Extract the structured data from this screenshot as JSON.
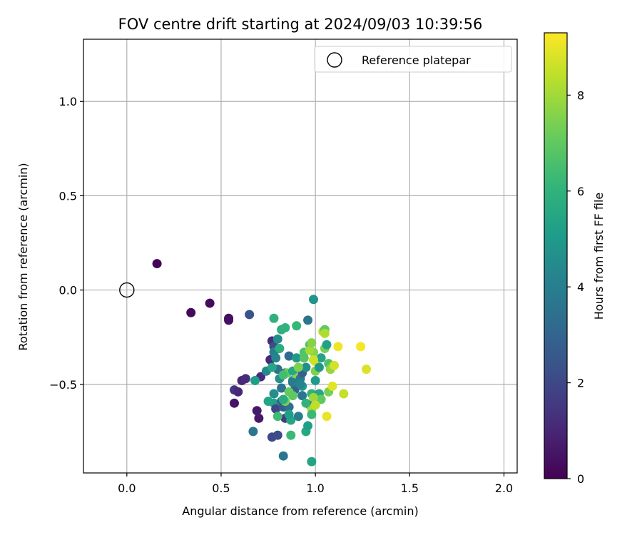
{
  "chart_data": {
    "type": "scatter",
    "title": "FOV centre drift starting at 2024/09/03 10:39:56",
    "xlabel": "Angular distance from reference (arcmin)",
    "ylabel": "Rotation from reference (arcmin)",
    "xlim": [
      -0.23,
      2.07
    ],
    "ylim": [
      -0.97,
      1.33
    ],
    "xticks": [
      0.0,
      0.5,
      1.0,
      1.5,
      2.0
    ],
    "xtick_labels": [
      "0.0",
      "0.5",
      "1.0",
      "1.5",
      "2.0"
    ],
    "yticks": [
      1.0,
      0.5,
      0.0,
      -0.5
    ],
    "ytick_labels": [
      "1.0",
      "0.5",
      "0.0",
      "−0.5"
    ],
    "grid": true,
    "legend": {
      "placement": "top-right",
      "entries": [
        "Reference platepar"
      ]
    },
    "reference_point": {
      "x": 0.0,
      "y": 0.0
    },
    "colorbar": {
      "label": "Hours from first FF file",
      "range": [
        0,
        9.3
      ],
      "ticks": [
        0,
        2,
        4,
        6,
        8
      ],
      "tick_labels": [
        "0",
        "2",
        "4",
        "6",
        "8"
      ],
      "colormap": "viridis"
    },
    "points": [
      {
        "x": 0.16,
        "y": 0.14,
        "c": 0.1
      },
      {
        "x": 0.34,
        "y": -0.12,
        "c": 0.2
      },
      {
        "x": 0.44,
        "y": -0.07,
        "c": 0.3
      },
      {
        "x": 0.54,
        "y": -0.15,
        "c": 0.3
      },
      {
        "x": 0.54,
        "y": -0.16,
        "c": 0.4
      },
      {
        "x": 0.65,
        "y": -0.13,
        "c": 2.3
      },
      {
        "x": 0.57,
        "y": -0.6,
        "c": 0.5
      },
      {
        "x": 0.57,
        "y": -0.53,
        "c": 1.5
      },
      {
        "x": 0.59,
        "y": -0.54,
        "c": 1.0
      },
      {
        "x": 0.61,
        "y": -0.48,
        "c": 1.0
      },
      {
        "x": 0.63,
        "y": -0.47,
        "c": 1.2
      },
      {
        "x": 0.69,
        "y": -0.64,
        "c": 0.6
      },
      {
        "x": 0.7,
        "y": -0.68,
        "c": 0.6
      },
      {
        "x": 0.71,
        "y": -0.46,
        "c": 1.1
      },
      {
        "x": 0.67,
        "y": -0.75,
        "c": 3.6
      },
      {
        "x": 0.68,
        "y": -0.48,
        "c": 5.2
      },
      {
        "x": 0.74,
        "y": -0.43,
        "c": 4.4
      },
      {
        "x": 0.76,
        "y": -0.37,
        "c": 1.1
      },
      {
        "x": 0.77,
        "y": -0.27,
        "c": 1.2
      },
      {
        "x": 0.78,
        "y": -0.3,
        "c": 2.2
      },
      {
        "x": 0.78,
        "y": -0.33,
        "c": 4.0
      },
      {
        "x": 0.78,
        "y": -0.55,
        "c": 4.6
      },
      {
        "x": 0.78,
        "y": -0.6,
        "c": 5.3
      },
      {
        "x": 0.79,
        "y": -0.63,
        "c": 1.9
      },
      {
        "x": 0.77,
        "y": -0.78,
        "c": 2.0
      },
      {
        "x": 0.8,
        "y": -0.77,
        "c": 2.1
      },
      {
        "x": 0.78,
        "y": -0.15,
        "c": 5.9
      },
      {
        "x": 0.79,
        "y": -0.36,
        "c": 4.2
      },
      {
        "x": 0.8,
        "y": -0.42,
        "c": 3.5
      },
      {
        "x": 0.8,
        "y": -0.26,
        "c": 4.5
      },
      {
        "x": 0.81,
        "y": -0.31,
        "c": 5.8
      },
      {
        "x": 0.81,
        "y": -0.47,
        "c": 4.7
      },
      {
        "x": 0.82,
        "y": -0.52,
        "c": 3.5
      },
      {
        "x": 0.82,
        "y": -0.59,
        "c": 3.0
      },
      {
        "x": 0.83,
        "y": -0.62,
        "c": 2.7
      },
      {
        "x": 0.84,
        "y": -0.68,
        "c": 1.6
      },
      {
        "x": 0.83,
        "y": -0.88,
        "c": 3.6
      },
      {
        "x": 0.84,
        "y": -0.44,
        "c": 2.5
      },
      {
        "x": 0.85,
        "y": -0.44,
        "c": 7.2
      },
      {
        "x": 0.86,
        "y": -0.35,
        "c": 3.3
      },
      {
        "x": 0.86,
        "y": -0.62,
        "c": 3.4
      },
      {
        "x": 0.87,
        "y": -0.69,
        "c": 5.5
      },
      {
        "x": 0.87,
        "y": -0.77,
        "c": 6.3
      },
      {
        "x": 0.88,
        "y": -0.48,
        "c": 4.4
      },
      {
        "x": 0.88,
        "y": -0.43,
        "c": 5.6
      },
      {
        "x": 0.89,
        "y": -0.53,
        "c": 2.9
      },
      {
        "x": 0.9,
        "y": -0.47,
        "c": 7.7
      },
      {
        "x": 0.9,
        "y": -0.36,
        "c": 5.0
      },
      {
        "x": 0.91,
        "y": -0.67,
        "c": 4.0
      },
      {
        "x": 0.92,
        "y": -0.47,
        "c": 3.8
      },
      {
        "x": 0.93,
        "y": -0.56,
        "c": 3.6
      },
      {
        "x": 0.93,
        "y": -0.44,
        "c": 2.9
      },
      {
        "x": 0.94,
        "y": -0.33,
        "c": 6.7
      },
      {
        "x": 0.95,
        "y": -0.41,
        "c": 4.6
      },
      {
        "x": 0.95,
        "y": -0.75,
        "c": 5.6
      },
      {
        "x": 0.96,
        "y": -0.72,
        "c": 5.2
      },
      {
        "x": 0.96,
        "y": -0.16,
        "c": 3.6
      },
      {
        "x": 0.97,
        "y": -0.29,
        "c": 6.6
      },
      {
        "x": 0.97,
        "y": -0.61,
        "c": 3.2
      },
      {
        "x": 0.98,
        "y": -0.55,
        "c": 5.9
      },
      {
        "x": 0.98,
        "y": -0.63,
        "c": 8.1
      },
      {
        "x": 0.98,
        "y": -0.66,
        "c": 6.3
      },
      {
        "x": 0.98,
        "y": -0.91,
        "c": 5.4
      },
      {
        "x": 0.99,
        "y": -0.05,
        "c": 4.8
      },
      {
        "x": 0.99,
        "y": -0.33,
        "c": 7.6
      },
      {
        "x": 1.0,
        "y": -0.38,
        "c": 8.9
      },
      {
        "x": 1.0,
        "y": -0.43,
        "c": 7.5
      },
      {
        "x": 1.01,
        "y": -0.56,
        "c": 4.5
      },
      {
        "x": 1.02,
        "y": -0.55,
        "c": 5.5
      },
      {
        "x": 1.03,
        "y": -0.36,
        "c": 5.4
      },
      {
        "x": 1.04,
        "y": -0.22,
        "c": 8.3
      },
      {
        "x": 1.05,
        "y": -0.21,
        "c": 7.0
      },
      {
        "x": 1.05,
        "y": -0.31,
        "c": 7.4
      },
      {
        "x": 1.06,
        "y": -0.29,
        "c": 5.3
      },
      {
        "x": 1.06,
        "y": -0.67,
        "c": 9.0
      },
      {
        "x": 1.07,
        "y": -0.54,
        "c": 7.4
      },
      {
        "x": 1.07,
        "y": -0.39,
        "c": 6.7
      },
      {
        "x": 1.08,
        "y": -0.42,
        "c": 7.8
      },
      {
        "x": 1.09,
        "y": -0.51,
        "c": 8.9
      },
      {
        "x": 1.1,
        "y": -0.4,
        "c": 8.7
      },
      {
        "x": 1.12,
        "y": -0.3,
        "c": 9.1
      },
      {
        "x": 1.15,
        "y": -0.55,
        "c": 8.5
      },
      {
        "x": 1.24,
        "y": -0.3,
        "c": 9.2
      },
      {
        "x": 1.27,
        "y": -0.42,
        "c": 8.8
      },
      {
        "x": 0.82,
        "y": -0.21,
        "c": 5.9
      },
      {
        "x": 0.84,
        "y": -0.2,
        "c": 6.0
      },
      {
        "x": 0.86,
        "y": -0.54,
        "c": 7.1
      },
      {
        "x": 0.84,
        "y": -0.59,
        "c": 7.3
      },
      {
        "x": 0.8,
        "y": -0.67,
        "c": 6.4
      },
      {
        "x": 0.83,
        "y": -0.58,
        "c": 5.7
      },
      {
        "x": 0.9,
        "y": -0.19,
        "c": 6.2
      },
      {
        "x": 0.91,
        "y": -0.41,
        "c": 7.5
      },
      {
        "x": 0.94,
        "y": -0.36,
        "c": 6.8
      },
      {
        "x": 0.97,
        "y": -0.32,
        "c": 8.0
      },
      {
        "x": 0.99,
        "y": -0.37,
        "c": 8.6
      },
      {
        "x": 1.0,
        "y": -0.48,
        "c": 5.1
      },
      {
        "x": 1.03,
        "y": -0.58,
        "c": 7.0
      },
      {
        "x": 1.05,
        "y": -0.23,
        "c": 8.2
      },
      {
        "x": 0.75,
        "y": -0.59,
        "c": 5.4
      },
      {
        "x": 0.77,
        "y": -0.41,
        "c": 5.5
      },
      {
        "x": 0.88,
        "y": -0.49,
        "c": 3.9
      },
      {
        "x": 0.93,
        "y": -0.51,
        "c": 5.0
      },
      {
        "x": 0.92,
        "y": -0.5,
        "c": 4.2
      },
      {
        "x": 0.98,
        "y": -0.28,
        "c": 7.6
      },
      {
        "x": 1.02,
        "y": -0.41,
        "c": 4.9
      },
      {
        "x": 0.95,
        "y": -0.6,
        "c": 6.0
      },
      {
        "x": 0.99,
        "y": -0.57,
        "c": 7.9
      },
      {
        "x": 1.0,
        "y": -0.61,
        "c": 8.4
      },
      {
        "x": 0.86,
        "y": -0.66,
        "c": 5.2
      },
      {
        "x": 0.83,
        "y": -0.45,
        "c": 6.5
      },
      {
        "x": 0.88,
        "y": -0.56,
        "c": 7.0
      }
    ]
  }
}
